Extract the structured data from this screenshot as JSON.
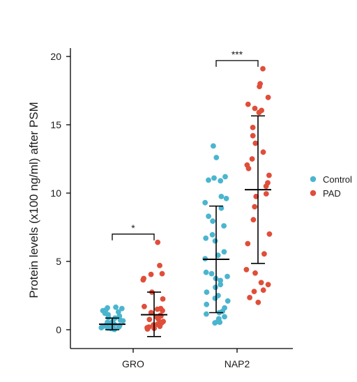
{
  "chart_data": {
    "type": "scatter",
    "subtype": "jittered dot plot with mean and SD error bars",
    "title": "",
    "xlabel": "",
    "ylabel": "Protein levels (x100 ng/ml) after PSM",
    "categories": [
      "GRO",
      "NAP2"
    ],
    "ylim": [
      -1.5,
      21
    ],
    "yticks": [
      0,
      5,
      10,
      15,
      20
    ],
    "grid": false,
    "legend_position": "right",
    "series": [
      {
        "name": "Control",
        "color": "#4BB5CF"
      },
      {
        "name": "PAD",
        "color": "#E04E39"
      }
    ],
    "groups": [
      {
        "category": "GRO",
        "series": "Control",
        "mean": 0.4,
        "sd_low": 0.0,
        "sd_high": 0.85,
        "points": [
          1.65,
          1.55,
          1.6,
          1.4,
          1.45,
          1.3,
          1.2,
          1.1,
          1.0,
          0.9,
          0.85,
          0.7,
          0.65,
          0.6,
          0.55,
          0.5,
          0.45,
          0.4,
          0.35,
          0.3,
          0.25,
          0.2,
          0.15,
          0.12,
          0.08,
          0.05,
          0.02
        ]
      },
      {
        "category": "GRO",
        "series": "PAD",
        "mean": 1.1,
        "sd_low": -0.5,
        "sd_high": 2.75,
        "points": [
          6.4,
          4.7,
          4.05,
          4.1,
          3.65,
          3.75,
          2.75,
          2.25,
          1.7,
          1.55,
          1.5,
          1.4,
          1.25,
          1.05,
          1.0,
          0.95,
          0.8,
          0.75,
          0.6,
          0.55,
          0.5,
          0.4,
          0.35,
          0.25,
          0.2,
          0.15,
          0.1,
          0.05
        ]
      },
      {
        "category": "NAP2",
        "series": "Control",
        "mean": 5.15,
        "sd_low": 1.25,
        "sd_high": 9.05,
        "points": [
          13.45,
          12.6,
          11.2,
          11.1,
          10.95,
          10.9,
          9.75,
          9.6,
          9.3,
          8.9,
          8.3,
          7.95,
          7.6,
          6.95,
          6.7,
          6.5,
          5.7,
          5.45,
          5.2,
          4.2,
          4.1,
          3.9,
          3.75,
          3.6,
          3.3,
          3.1,
          2.75,
          2.5,
          2.3,
          2.1,
          1.85,
          1.6,
          1.35,
          1.25,
          1.15,
          0.95,
          0.8,
          0.6,
          0.55,
          0.5
        ]
      },
      {
        "category": "NAP2",
        "series": "PAD",
        "mean": 10.25,
        "sd_low": 4.85,
        "sd_high": 15.65,
        "points": [
          19.1,
          18.0,
          17.8,
          17.0,
          16.5,
          16.2,
          16.05,
          15.9,
          14.8,
          14.2,
          13.65,
          13.0,
          12.5,
          12.05,
          11.8,
          11.3,
          10.75,
          10.5,
          9.95,
          9.75,
          9.0,
          8.05,
          7.0,
          6.3,
          5.55,
          4.4,
          4.15,
          3.45,
          3.3,
          2.9,
          2.8,
          2.35,
          2.0
        ]
      }
    ],
    "significance": [
      {
        "category": "GRO",
        "label": "*",
        "y": 7.0
      },
      {
        "category": "NAP2",
        "label": "***",
        "y": 19.7
      }
    ]
  }
}
